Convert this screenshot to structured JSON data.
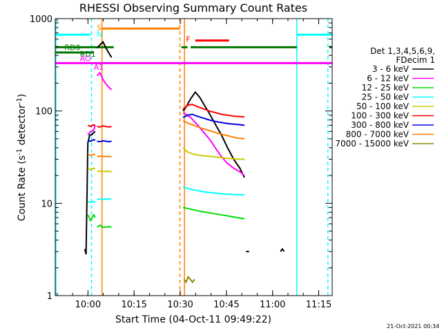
{
  "chart_data": {
    "type": "line",
    "title": "RHESSI Observing Summary Count Rates",
    "xlabel": "Start Time (04-Oct-11 09:49:22)",
    "ylabel": "Count Rate (s",
    "ylabel_sup1": "-1",
    "ylabel_mid": " detector",
    "ylabel_sup2": "-1",
    "ylabel_end": ")",
    "yscale": "log",
    "x_unit": "minutes after 09:49:22",
    "xlim": [
      0,
      90
    ],
    "ylim": [
      1,
      1000
    ],
    "x_ticks": [
      {
        "t": 10.63,
        "label": "10:00"
      },
      {
        "t": 25.63,
        "label": "10:15"
      },
      {
        "t": 40.63,
        "label": "10:30"
      },
      {
        "t": 55.63,
        "label": "10:45"
      },
      {
        "t": 70.63,
        "label": "11:00"
      },
      {
        "t": 85.63,
        "label": "11:15"
      }
    ],
    "y_ticks": [
      {
        "v": 1,
        "label": "1"
      },
      {
        "v": 10,
        "label": "10"
      },
      {
        "v": 100,
        "label": "100"
      },
      {
        "v": 1000,
        "label": "1000"
      }
    ],
    "legend": {
      "placement": "right",
      "header1": "Det 1,3,4,5,6,9,",
      "header2": "FDecim 1",
      "entries": [
        {
          "label": "3 - 6 keV",
          "color": "#000000"
        },
        {
          "label": "6 - 12 keV",
          "color": "#ff00ff"
        },
        {
          "label": "12 - 25 keV",
          "color": "#00dd00"
        },
        {
          "label": "25 - 50 keV",
          "color": "#00ffff"
        },
        {
          "label": "50 - 100 keV",
          "color": "#cccc00"
        },
        {
          "label": "100 - 300 keV",
          "color": "#ff0000"
        },
        {
          "label": "300 - 800 keV",
          "color": "#0000dd"
        },
        {
          "label": "800 - 7000 keV",
          "color": "#ff8000"
        },
        {
          "label": "7000 - 15000 keV",
          "color": "#888800"
        }
      ]
    },
    "series": [
      {
        "name": "3 - 6 keV",
        "color": "#000000",
        "segments": [
          {
            "x": [
              9.6,
              10.0,
              10.6,
              11.2,
              11.8,
              12.4,
              13.0
            ],
            "y": [
              3.2,
              2.8,
              45,
              55,
              55,
              58,
              60
            ]
          },
          {
            "x": [
              13.6,
              14.5,
              15.5,
              16.5,
              17.5,
              18.3
            ],
            "y": [
              480,
              520,
              560,
              480,
              420,
              380
            ]
          },
          {
            "x": [
              41.5,
              42.5,
              44,
              45.5,
              47,
              48.5,
              50,
              52,
              54,
              56,
              58,
              60,
              61.5
            ],
            "y": [
              100,
              110,
              135,
              160,
              140,
              115,
              95,
              72,
              55,
              40,
              30,
              24,
              19
            ]
          },
          {
            "x": [
              62,
              63
            ],
            "y": [
              3,
              3
            ]
          },
          {
            "x": [
              73.2,
              73.8,
              74.4
            ],
            "y": [
              3,
              3.2,
              3
            ]
          }
        ]
      },
      {
        "name": "6 - 12 keV",
        "color": "#ff00ff",
        "segments": [
          {
            "x": [
              10.6,
              11.5,
              12.5,
              13.0
            ],
            "y": [
              55,
              60,
              62,
              70
            ]
          },
          {
            "x": [
              13.6,
              14.5,
              15.5,
              16.5,
              17.5,
              18.3
            ],
            "y": [
              240,
              260,
              220,
              195,
              180,
              170
            ]
          },
          {
            "x": [
              41.5,
              42.5,
              44,
              46,
              48,
              50,
              52,
              54,
              56,
              58,
              60,
              61.5
            ],
            "y": [
              95,
              92,
              85,
              72,
              60,
              50,
              40,
              32,
              27,
              24,
              22,
              20
            ]
          }
        ]
      },
      {
        "name": "12 - 25 keV",
        "color": "#00dd00",
        "segments": [
          {
            "x": [
              10.6,
              11.5,
              12.5,
              13.0
            ],
            "y": [
              7.5,
              6.5,
              7.5,
              7.0
            ]
          },
          {
            "x": [
              13.6,
              14.5,
              15.5,
              16.5,
              17.5,
              18.3
            ],
            "y": [
              5.5,
              5.8,
              5.5,
              5.5,
              5.6,
              5.5
            ]
          },
          {
            "x": [
              41.5,
              43,
              45,
              47,
              49,
              51,
              53,
              55,
              57,
              59,
              61.5
            ],
            "y": [
              9,
              8.8,
              8.5,
              8.2,
              8.0,
              7.8,
              7.6,
              7.4,
              7.2,
              7.0,
              6.8
            ]
          }
        ]
      },
      {
        "name": "25 - 50 keV",
        "color": "#00ffff",
        "segments": [
          {
            "x": [
              10.6,
              11.5,
              12.5,
              13.0
            ],
            "y": [
              10.5,
              10.2,
              10.5,
              10.3
            ]
          },
          {
            "x": [
              13.6,
              14.5,
              15.5,
              16.5,
              17.5,
              18.3
            ],
            "y": [
              11,
              11.2,
              11,
              11.1,
              11.2,
              11
            ]
          },
          {
            "x": [
              41.5,
              43,
              45,
              47,
              49,
              51,
              53,
              55,
              57,
              59,
              61.5
            ],
            "y": [
              15,
              14.5,
              14,
              13.6,
              13.2,
              13,
              12.8,
              12.6,
              12.5,
              12.4,
              12.3
            ]
          }
        ]
      },
      {
        "name": "50 - 100 keV",
        "color": "#cccc00",
        "segments": [
          {
            "x": [
              10.6,
              11.5,
              12.5,
              13.0
            ],
            "y": [
              24,
              23,
              24,
              23.5
            ]
          },
          {
            "x": [
              13.6,
              14.5,
              15.5,
              16.5,
              17.5,
              18.3
            ],
            "y": [
              22,
              22.5,
              22,
              22.3,
              22.1,
              22
            ]
          },
          {
            "x": [
              41.5,
              43,
              45,
              47,
              49,
              51,
              53,
              55,
              57,
              59,
              61.5
            ],
            "y": [
              40,
              36,
              34,
              33,
              32.5,
              32,
              31.5,
              31,
              30.5,
              30.2,
              30
            ]
          }
        ]
      },
      {
        "name": "100 - 300 keV",
        "color": "#ff0000",
        "segments": [
          {
            "x": [
              10.6,
              11.5,
              12.5,
              13.0
            ],
            "y": [
              70,
              68,
              71,
              69
            ]
          },
          {
            "x": [
              13.6,
              14.5,
              15.5,
              16.5,
              17.5,
              18.3
            ],
            "y": [
              68,
              67,
              69,
              68,
              67,
              68
            ]
          },
          {
            "x": [
              41.5,
              43,
              44.5,
              46,
              48,
              50,
              52,
              54,
              56,
              58,
              60,
              61.5
            ],
            "y": [
              105,
              115,
              118,
              112,
              106,
              100,
              96,
              92,
              90,
              88,
              87,
              86
            ]
          }
        ]
      },
      {
        "name": "300 - 800 keV",
        "color": "#0000dd",
        "segments": [
          {
            "x": [
              10.6,
              11.5,
              12.5,
              13.0
            ],
            "y": [
              48,
              47,
              49,
              48
            ]
          },
          {
            "x": [
              13.6,
              14.5,
              15.5,
              16.5,
              17.5,
              18.3
            ],
            "y": [
              47,
              46.5,
              47.5,
              47,
              46.5,
              47
            ]
          },
          {
            "x": [
              41.5,
              43,
              44.5,
              46,
              48,
              50,
              52,
              54,
              56,
              58,
              60,
              61.5
            ],
            "y": [
              85,
              90,
              92,
              88,
              84,
              80,
              77,
              75,
              73,
              72,
              71,
              70
            ]
          }
        ]
      },
      {
        "name": "800 - 7000 keV",
        "color": "#ff8000",
        "segments": [
          {
            "x": [
              10.6,
              11.5,
              12.5,
              13.0
            ],
            "y": [
              34,
              33,
              34,
              33.5
            ]
          },
          {
            "x": [
              13.6,
              14.5,
              15.5,
              16.5,
              17.5,
              18.3
            ],
            "y": [
              32,
              32.5,
              32,
              32.3,
              32,
              32
            ]
          },
          {
            "x": [
              41.5,
              43,
              45,
              47,
              49,
              51,
              53,
              55,
              57,
              59,
              61.5
            ],
            "y": [
              78,
              74,
              70,
              66,
              63,
              60,
              57,
              55,
              53,
              51,
              50
            ]
          }
        ]
      },
      {
        "name": "7000 - 15000 keV",
        "color": "#888800",
        "segments": [
          {
            "x": [
              41.8,
              42.5,
              43.2,
              43.9,
              44.6,
              45.3
            ],
            "y": [
              1.5,
              1.4,
              1.6,
              1.5,
              1.4,
              1.5
            ]
          }
        ]
      }
    ],
    "flags": [
      {
        "label": "RD0",
        "color": "#007700",
        "label_t": 3.0,
        "label_v": 490,
        "bars": [
          [
            0,
            19
          ],
          [
            41,
            43
          ],
          [
            44,
            78.5
          ],
          [
            89,
            90
          ]
        ],
        "level": 490
      },
      {
        "label": "RD1",
        "color": "#007700",
        "label_t": 8.0,
        "label_v": 415,
        "bars": [
          [
            0,
            12.5
          ]
        ],
        "level": 430
      },
      {
        "label": "AO",
        "color": "#ff00ff",
        "label_t": 8.0,
        "label_v": 370,
        "bars": [
          [
            0,
            90
          ]
        ],
        "level": 330
      },
      {
        "label": "A1",
        "color": "#ff00ff",
        "label_t": 12.5,
        "label_v": 300,
        "bars": [],
        "level": 300
      },
      {
        "label": "S",
        "color": "#ff8000",
        "label_t": 13.5,
        "label_v": 800,
        "bars": [
          [
            15,
            40.5
          ]
        ],
        "level": 780
      },
      {
        "label": "N",
        "color": "#00ffff",
        "label_t": 13.5,
        "label_v": 680,
        "bars": [
          [
            0,
            11.5
          ],
          [
            78.5,
            90
          ]
        ],
        "level": 670
      },
      {
        "label": "F",
        "color": "#ff0000",
        "label_t": 42.5,
        "label_v": 600,
        "bars": [
          [
            45.5,
            56.5
          ]
        ],
        "level": 580
      }
    ],
    "vlines": [
      {
        "t": 0.2,
        "color": "#00ffff",
        "dash": false
      },
      {
        "t": 11.8,
        "color": "#00ffff",
        "dash": true
      },
      {
        "t": 15.2,
        "color": "#ff8000",
        "dash": false
      },
      {
        "t": 40.5,
        "color": "#ff8000",
        "dash": true
      },
      {
        "t": 42.0,
        "color": "#ff8000",
        "dash": false
      },
      {
        "t": 78.5,
        "color": "#00ffff",
        "dash": false
      },
      {
        "t": 88.6,
        "color": "#00ffff",
        "dash": true
      }
    ],
    "footer_timestamp": "21-Oct-2021 00:34"
  }
}
